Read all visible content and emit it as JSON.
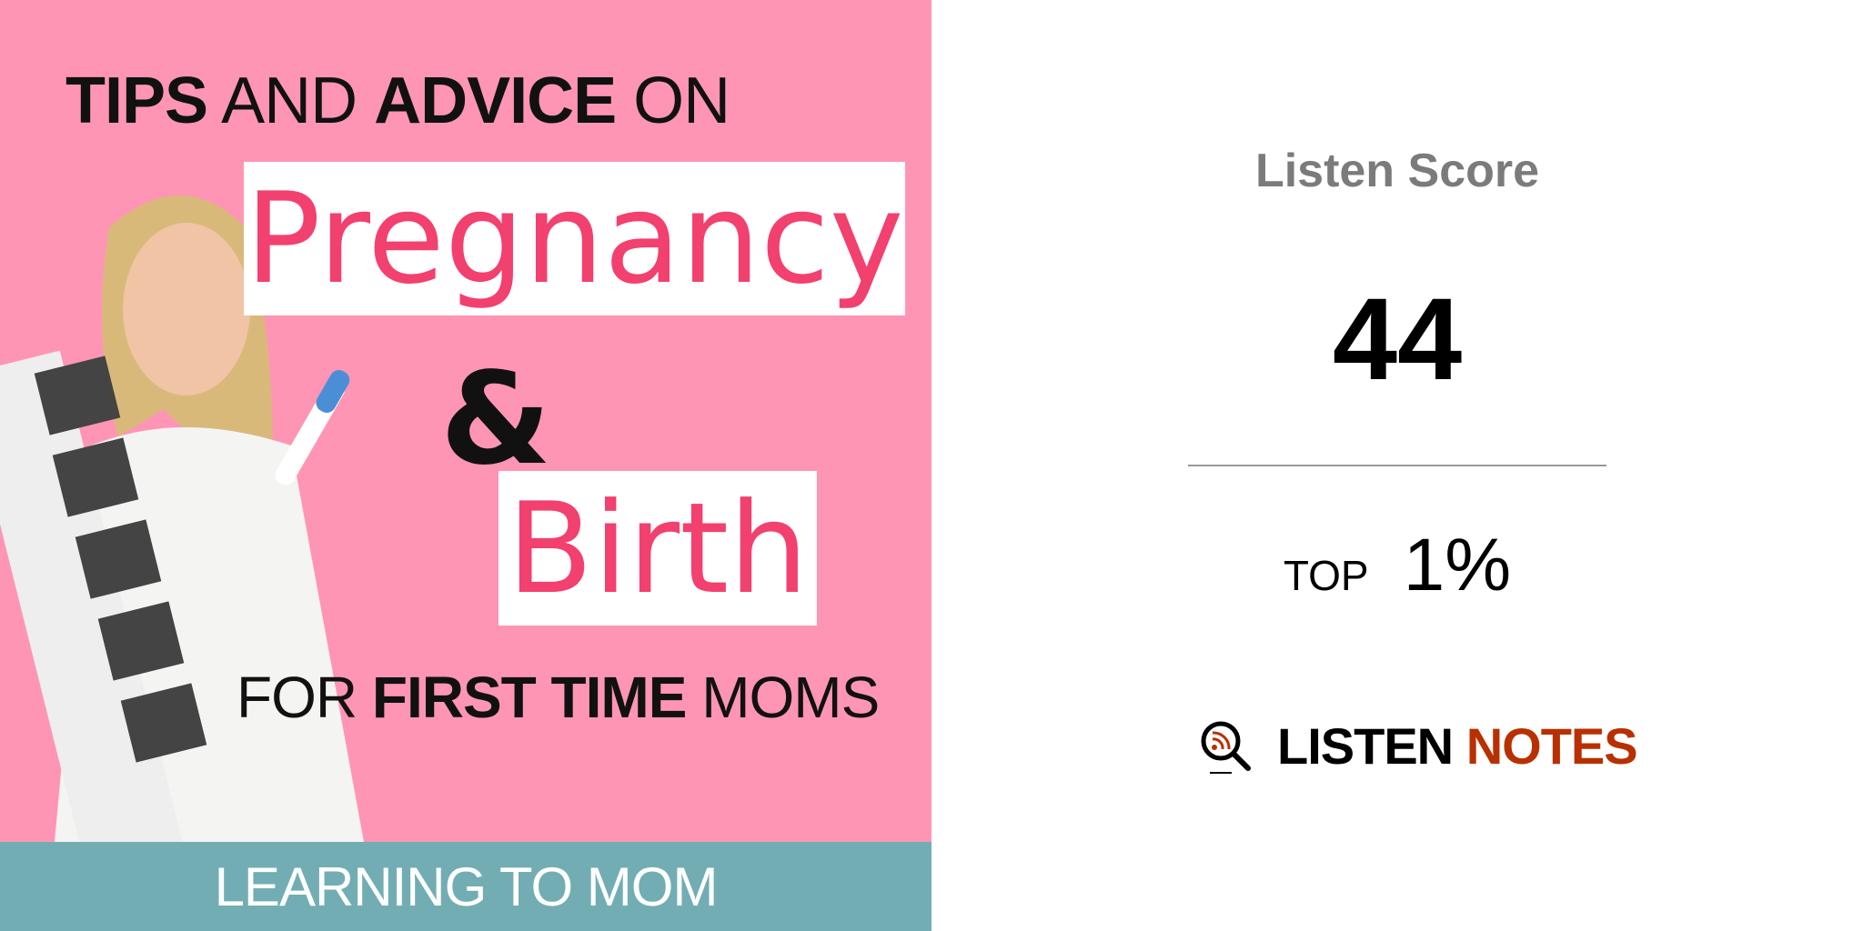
{
  "cover": {
    "headline": {
      "part1": "TIPS",
      "part2": " AND ",
      "part3": "ADVICE",
      "part4": " ON"
    },
    "word1": "Pregnancy",
    "ampersand": "&",
    "word2": "Birth",
    "tagline": {
      "part1": "FOR ",
      "part2": "FIRST TIME",
      "part3": " MOMS"
    },
    "band_text": "LEARNING TO MOM",
    "colors": {
      "background": "#FF95B4",
      "accent": "#F2406F",
      "band": "#72ADB4"
    }
  },
  "score_panel": {
    "label": "Listen Score",
    "score": "44",
    "top_label": "TOP",
    "top_value": "1%"
  },
  "logo": {
    "word1": "LISTEN",
    "word2": "NOTES",
    "icon": "magnifier-rss-icon",
    "accent": "#B83000"
  }
}
